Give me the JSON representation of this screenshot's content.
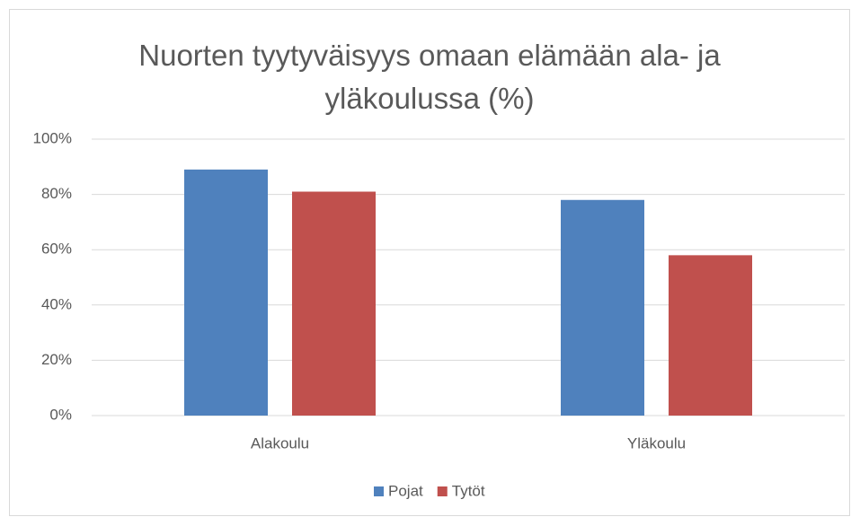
{
  "chart_data": {
    "type": "bar",
    "title": "Nuorten tyytyväisyys omaan elämään ala- ja yläkoulussa (%)",
    "categories": [
      "Alakoulu",
      "Yläkoulu"
    ],
    "series": [
      {
        "name": "Pojat",
        "color": "#4f81bd",
        "values": [
          89,
          78
        ]
      },
      {
        "name": "Tytöt",
        "color": "#c0504d",
        "values": [
          81,
          58
        ]
      }
    ],
    "ylim": [
      0,
      100
    ],
    "yticks": [
      {
        "value": 0,
        "label": "0%"
      },
      {
        "value": 20,
        "label": "20%"
      },
      {
        "value": 40,
        "label": "40%"
      },
      {
        "value": 60,
        "label": "60%"
      },
      {
        "value": 80,
        "label": "80%"
      },
      {
        "value": 100,
        "label": "100%"
      }
    ],
    "grid": true,
    "legend": "bottom"
  }
}
